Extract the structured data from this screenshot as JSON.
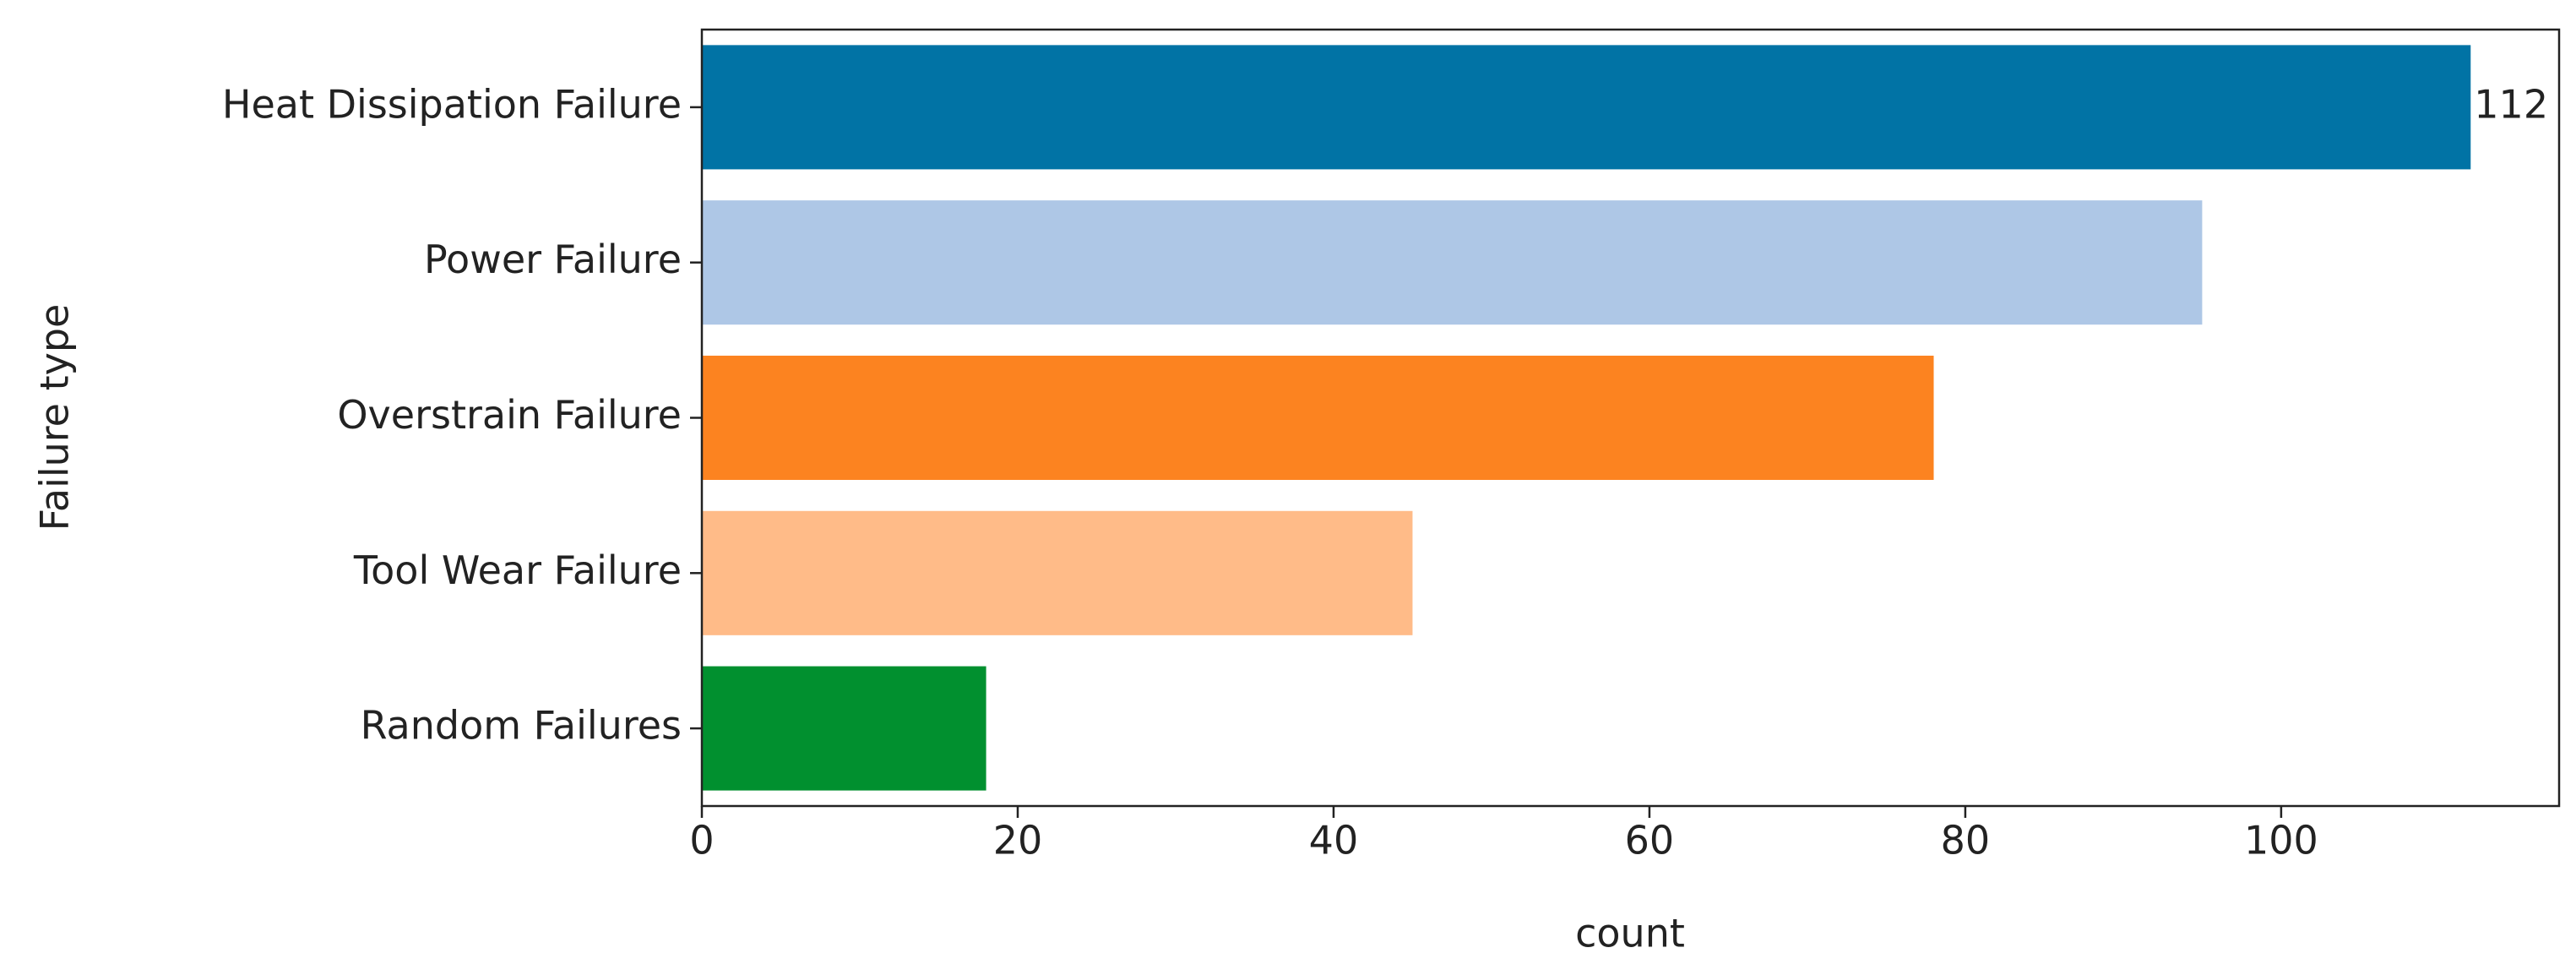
{
  "chart_data": {
    "type": "barh",
    "y_label": "Failure type",
    "x_label": "count",
    "categories": [
      "Heat Dissipation Failure",
      "Power Failure",
      "Overstrain Failure",
      "Tool Wear Failure",
      "Random Failures"
    ],
    "values": [
      112,
      95,
      78,
      45,
      18
    ],
    "value_labels": [
      "112",
      null,
      null,
      null,
      null
    ],
    "colors": [
      "#0173a5",
      "#aec7e6",
      "#fc8320",
      "#ffbb88",
      "#01902f"
    ],
    "xlim": [
      0,
      117.6
    ],
    "xticks": [
      0,
      20,
      40,
      60,
      80,
      100
    ],
    "grid": false
  }
}
